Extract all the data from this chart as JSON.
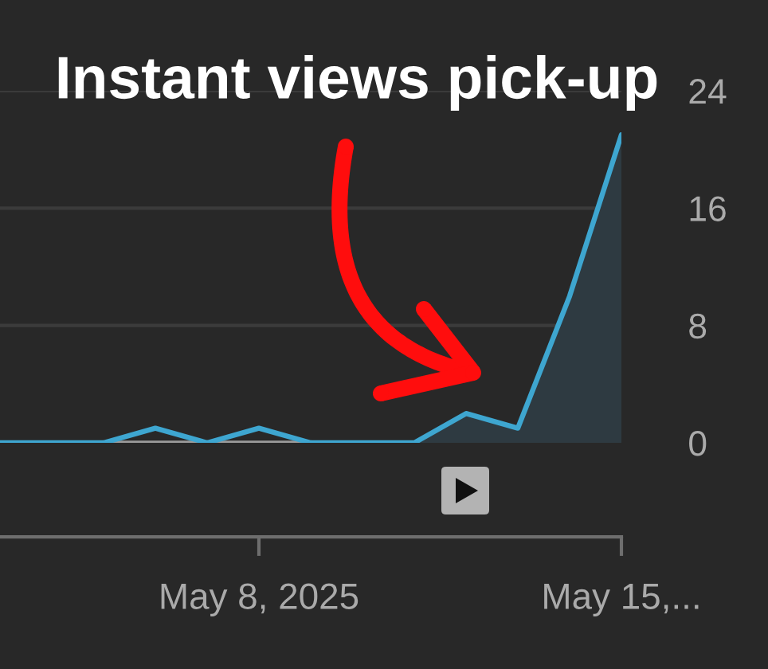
{
  "chart_data": {
    "type": "line",
    "annotations": [
      "Instant views pick-up"
    ],
    "x": [
      "2025-05-03",
      "2025-05-04",
      "2025-05-05",
      "2025-05-06",
      "2025-05-07",
      "2025-05-08",
      "2025-05-09",
      "2025-05-10",
      "2025-05-11",
      "2025-05-12",
      "2025-05-13",
      "2025-05-14",
      "2025-05-15"
    ],
    "series": [
      {
        "color": "#3ea6d0",
        "values": [
          0,
          0,
          0,
          1,
          0,
          1,
          0,
          0,
          0,
          2,
          1,
          10,
          21
        ]
      },
      {
        "type": "area",
        "color": "#2e3a41",
        "x": [
          "2025-05-11",
          "2025-05-12",
          "2025-05-13",
          "2025-05-14",
          "2025-05-15"
        ],
        "values": [
          0,
          2,
          1,
          10,
          21
        ]
      }
    ],
    "xlim": [
      "2025-05-03",
      "2025-05-15"
    ],
    "xticks": [
      {
        "value": "2025-05-08",
        "label": "May 8, 2025"
      },
      {
        "value": "2025-05-15",
        "label": "May 15,..."
      }
    ],
    "ylim": [
      0,
      24
    ],
    "yticks": [
      0,
      8,
      16,
      24
    ],
    "grid": "y"
  }
}
